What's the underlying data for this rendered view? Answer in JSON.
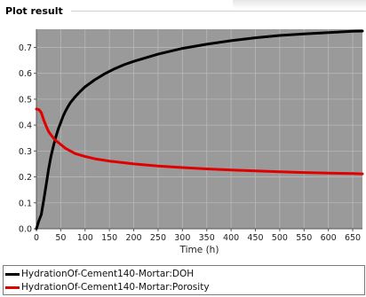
{
  "panel": {
    "title": "Plot result"
  },
  "colors": {
    "background": "#9a9a9a",
    "grid": "#b8b8b8"
  },
  "chart_data": {
    "type": "line",
    "title": "",
    "xlabel": "Time (h)",
    "ylabel": "",
    "xlim": [
      0,
      670
    ],
    "ylim": [
      0,
      0.77
    ],
    "x_ticks": [
      0,
      50,
      100,
      150,
      200,
      250,
      300,
      350,
      400,
      450,
      500,
      550,
      600,
      650
    ],
    "y_ticks": [
      0.0,
      0.1,
      0.2,
      0.3,
      0.4,
      0.5,
      0.6,
      0.7
    ],
    "grid": true,
    "legend_position": "bottom",
    "series": [
      {
        "name": "HydrationOf-Cement140-Mortar:DOH",
        "color": "#000000",
        "x": [
          0,
          5,
          10,
          15,
          20,
          25,
          30,
          35,
          40,
          45,
          50,
          55,
          60,
          65,
          70,
          80,
          90,
          100,
          120,
          140,
          160,
          180,
          200,
          250,
          300,
          350,
          400,
          450,
          500,
          550,
          600,
          650,
          670
        ],
        "y": [
          0.0,
          0.03,
          0.055,
          0.11,
          0.17,
          0.23,
          0.28,
          0.32,
          0.355,
          0.385,
          0.41,
          0.435,
          0.455,
          0.472,
          0.487,
          0.51,
          0.53,
          0.548,
          0.575,
          0.598,
          0.617,
          0.633,
          0.646,
          0.674,
          0.696,
          0.712,
          0.726,
          0.737,
          0.746,
          0.752,
          0.757,
          0.762,
          0.763
        ]
      },
      {
        "name": "HydrationOf-Cement140-Mortar:Porosity",
        "color": "#e00000",
        "x": [
          0,
          5,
          10,
          15,
          20,
          25,
          30,
          35,
          40,
          50,
          60,
          70,
          80,
          100,
          120,
          150,
          200,
          250,
          300,
          350,
          400,
          450,
          500,
          550,
          600,
          650,
          670
        ],
        "y": [
          0.462,
          0.46,
          0.448,
          0.42,
          0.396,
          0.375,
          0.362,
          0.35,
          0.34,
          0.325,
          0.31,
          0.3,
          0.29,
          0.279,
          0.27,
          0.261,
          0.25,
          0.242,
          0.236,
          0.231,
          0.227,
          0.223,
          0.22,
          0.217,
          0.215,
          0.213,
          0.212
        ]
      }
    ]
  }
}
